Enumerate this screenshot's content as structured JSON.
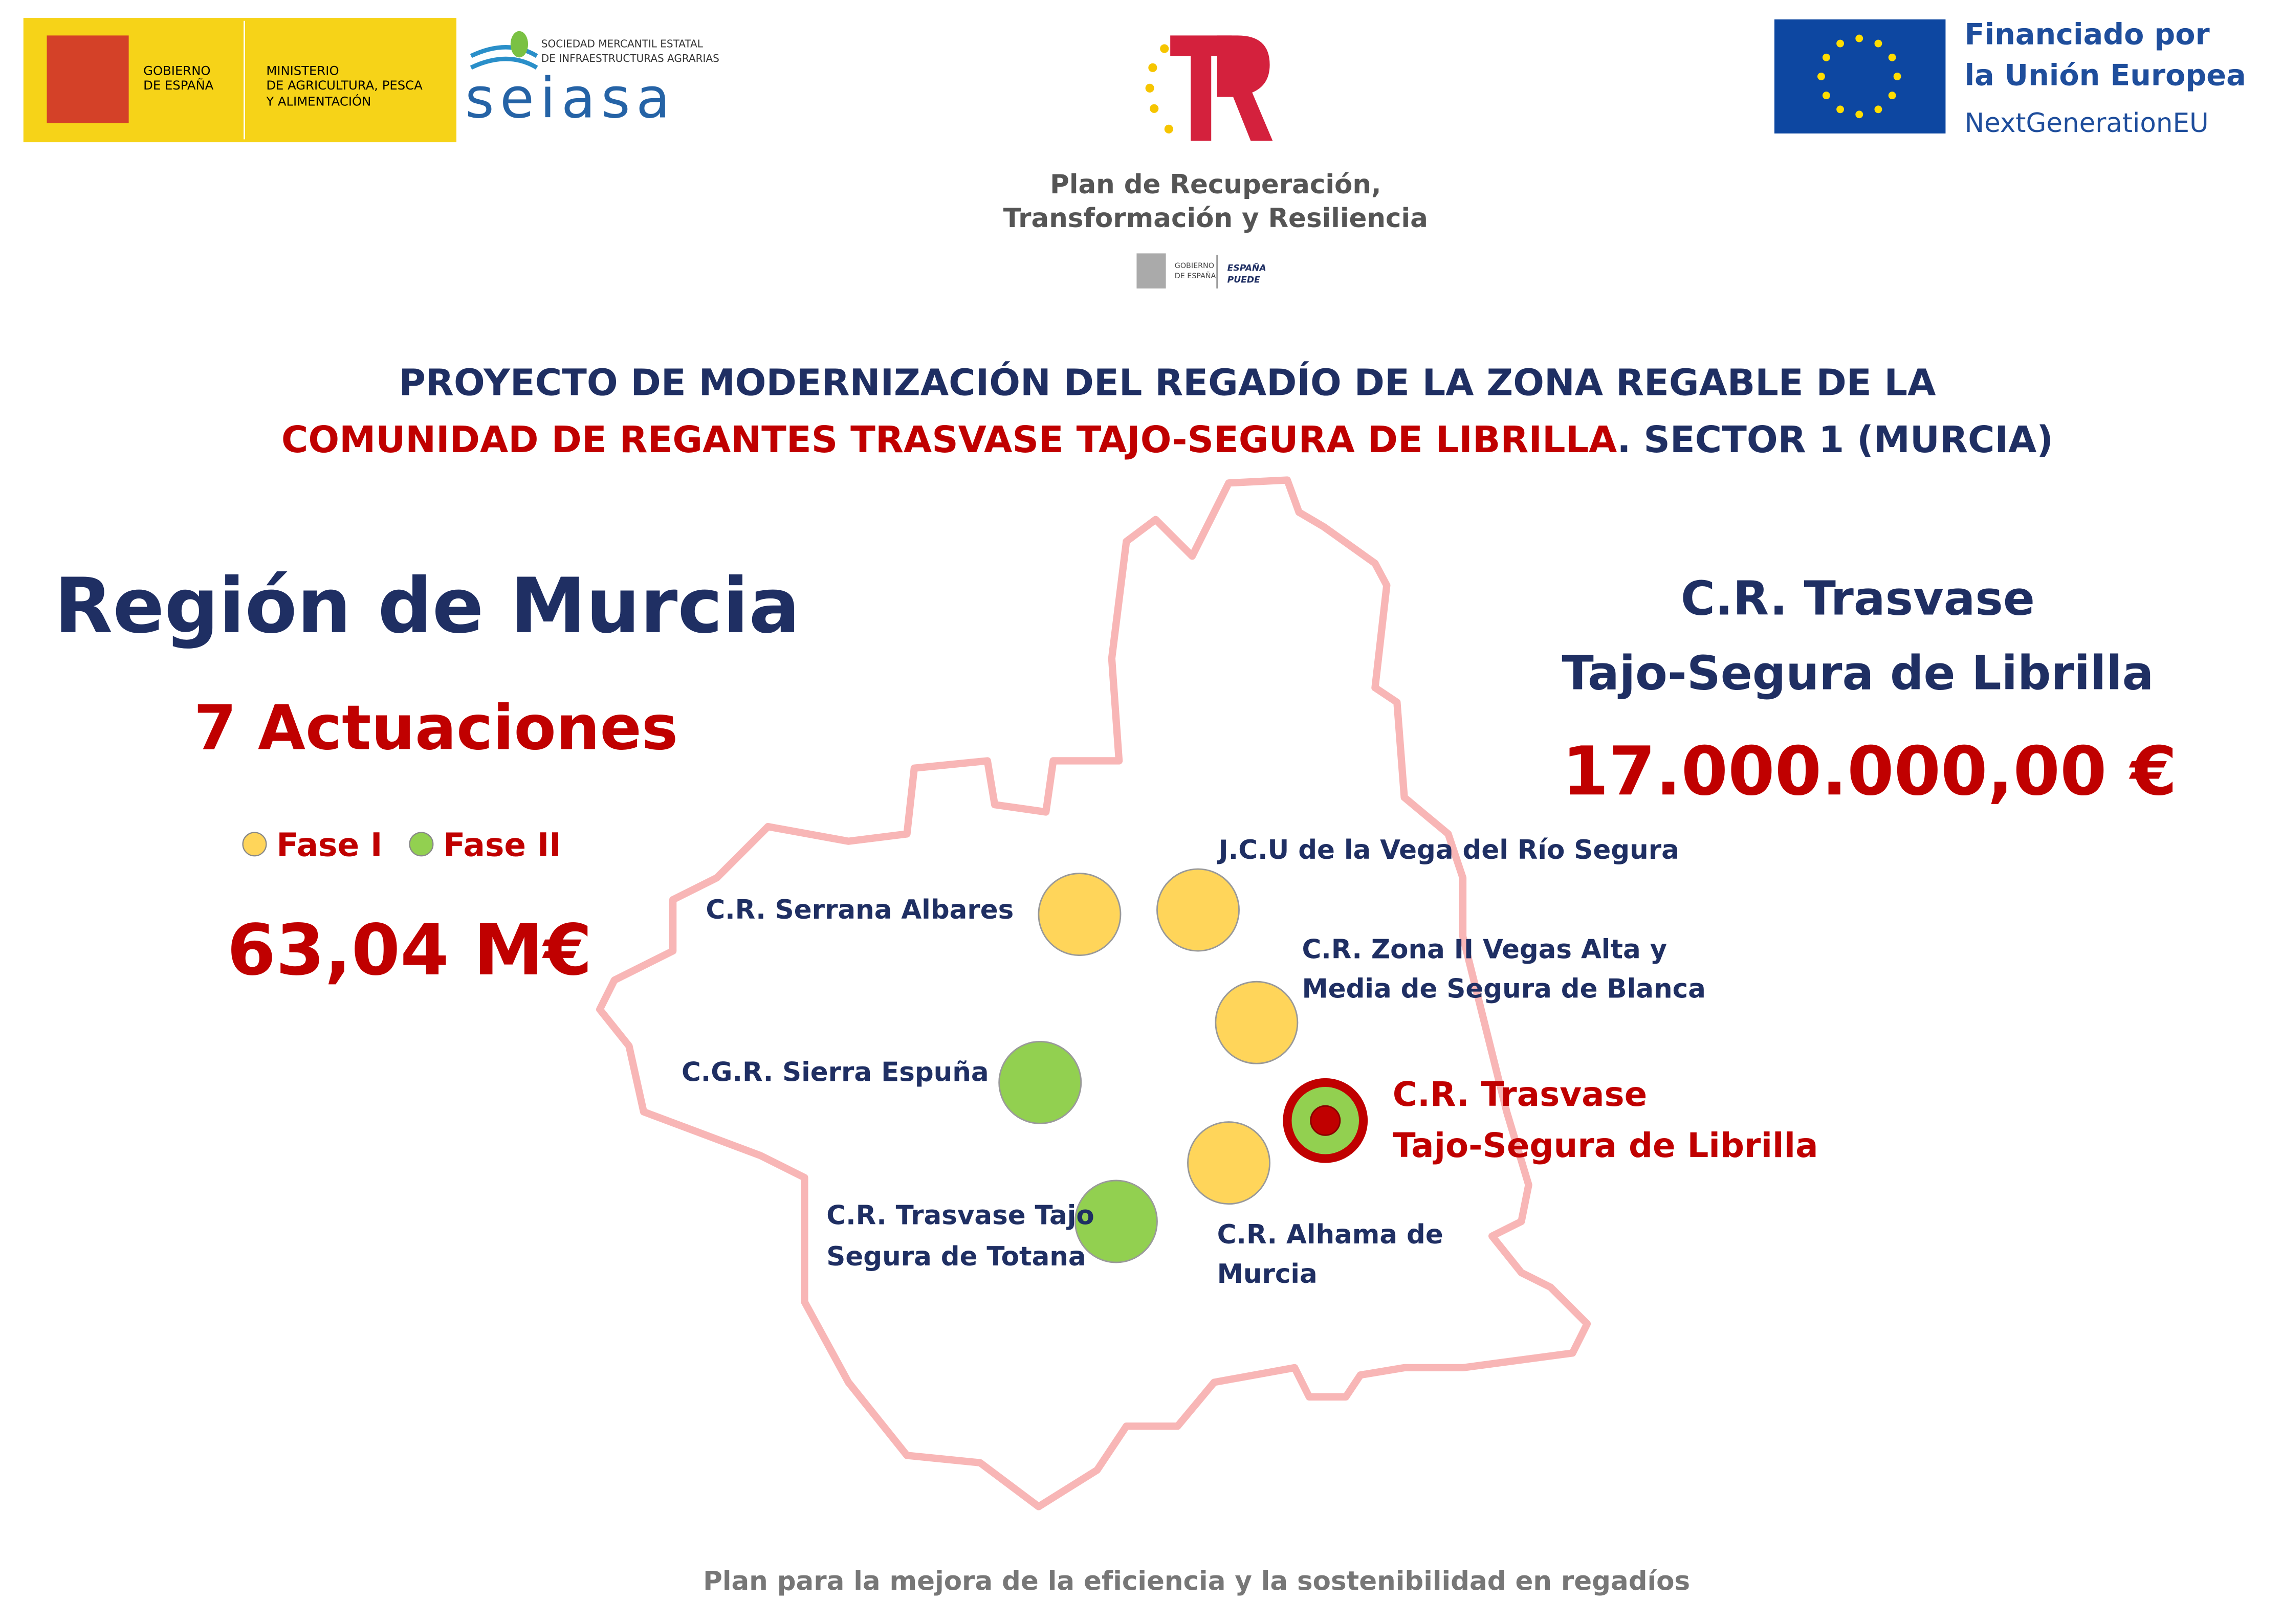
{
  "header": {
    "gov_logo": {
      "line1": "GOBIERNO",
      "line2": "DE ESPAÑA",
      "ministry": [
        "MINISTERIO",
        "DE AGRICULTURA, PESCA",
        "Y ALIMENTACIÓN"
      ]
    },
    "seiasa": {
      "caption": [
        "SOCIEDAD MERCANTIL ESTATAL",
        "DE INFRAESTRUCTURAS AGRARIAS"
      ],
      "name": "seiasa"
    },
    "prtr": {
      "lines": [
        "Plan de Recuperación,",
        "Transformación y Resiliencia"
      ],
      "gov": [
        "GOBIERNO",
        "DE ESPAÑA"
      ],
      "puede": [
        "ESPAÑA",
        "PUEDE"
      ]
    },
    "eu": {
      "lines": [
        "Financiado por",
        "la Unión Europea"
      ],
      "sub": "NextGenerationEU"
    }
  },
  "title": {
    "line1": "PROYECTO DE MODERNIZACIÓN DEL REGADÍO DE LA ZONA REGABLE DE LA",
    "line2_highlight": "COMUNIDAD DE REGANTES TRASVASE TAJO-SEGURA DE LIBRILLA",
    "line2_rest": ". SECTOR 1 (MURCIA)"
  },
  "region": {
    "name": "Región de Murcia",
    "actions": "7 Actuaciones",
    "total": "63,04 M€",
    "legend": [
      {
        "label": "Fase I",
        "color": "#ffd55a"
      },
      {
        "label": "Fase II",
        "color": "#92d050"
      }
    ]
  },
  "project": {
    "name": [
      "C.R. Trasvase",
      "Tajo-Segura de Librilla"
    ],
    "amount": "17.000.000,00 €"
  },
  "sites": [
    {
      "lines": [
        "C.R. Serrana Albares"
      ],
      "color": "#ffd55a"
    },
    {
      "lines": [
        "J.C.U de la Vega del Río Segura"
      ],
      "color": "#ffd55a"
    },
    {
      "lines": [
        "C.R. Zona II Vegas Alta y",
        "Media de Segura de Blanca"
      ],
      "color": "#ffd55a"
    },
    {
      "lines": [
        "C.G.R. Sierra Espuña"
      ],
      "color": "#92d050"
    },
    {
      "lines": [
        "C.R. Trasvase",
        "Tajo-Segura de Librilla"
      ],
      "color": "#92d050"
    },
    {
      "lines": [
        "C.R. Alhama de",
        "Murcia"
      ],
      "color": "#ffd55a"
    },
    {
      "lines": [
        "C.R. Trasvase Tajo",
        "Segura de Totana"
      ],
      "color": "#92d050"
    }
  ],
  "footer": "Plan para la mejora de la eficiencia y la sostenibilidad en regadíos"
}
